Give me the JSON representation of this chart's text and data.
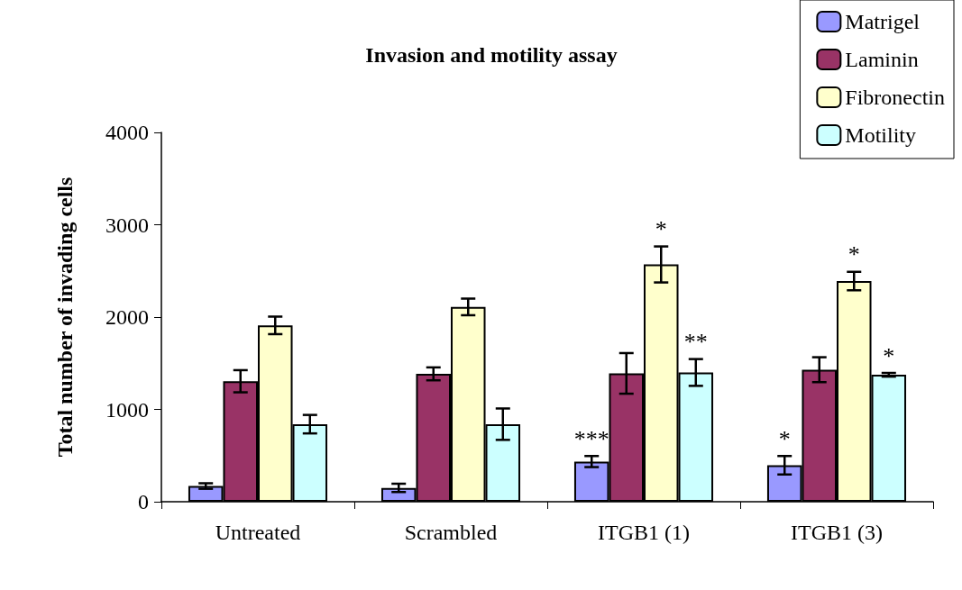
{
  "chart_data": {
    "type": "bar",
    "title": "Invasion and motility assay",
    "ylabel": "Total number of invading cells",
    "categories": [
      "Untreated",
      "Scrambled",
      "ITGB1 (1)",
      "ITGB1 (3)"
    ],
    "series": [
      {
        "name": "Matrigel",
        "color": "#9999ff",
        "values": [
          170,
          150,
          435,
          395
        ],
        "errors": [
          30,
          45,
          60,
          100
        ],
        "value_labels": [
          null,
          null,
          "***",
          "*"
        ]
      },
      {
        "name": "Laminin",
        "color": "#993366",
        "values": [
          1305,
          1385,
          1390,
          1430
        ],
        "errors": [
          120,
          70,
          220,
          135
        ],
        "value_labels": [
          null,
          null,
          null,
          null
        ]
      },
      {
        "name": "Fibronectin",
        "color": "#ffffcc",
        "values": [
          1910,
          2110,
          2570,
          2390
        ],
        "errors": [
          95,
          90,
          195,
          100
        ],
        "value_labels": [
          null,
          null,
          "*",
          "*"
        ]
      },
      {
        "name": "Motility",
        "color": "#ccffff",
        "values": [
          840,
          840,
          1400,
          1375
        ],
        "errors": [
          100,
          170,
          145,
          20
        ],
        "value_labels": [
          null,
          null,
          "**",
          "*"
        ]
      }
    ],
    "ylim": [
      0,
      4000
    ],
    "yticks": [
      0,
      1000,
      2000,
      3000,
      4000
    ],
    "grid": false,
    "legend": "top right"
  }
}
